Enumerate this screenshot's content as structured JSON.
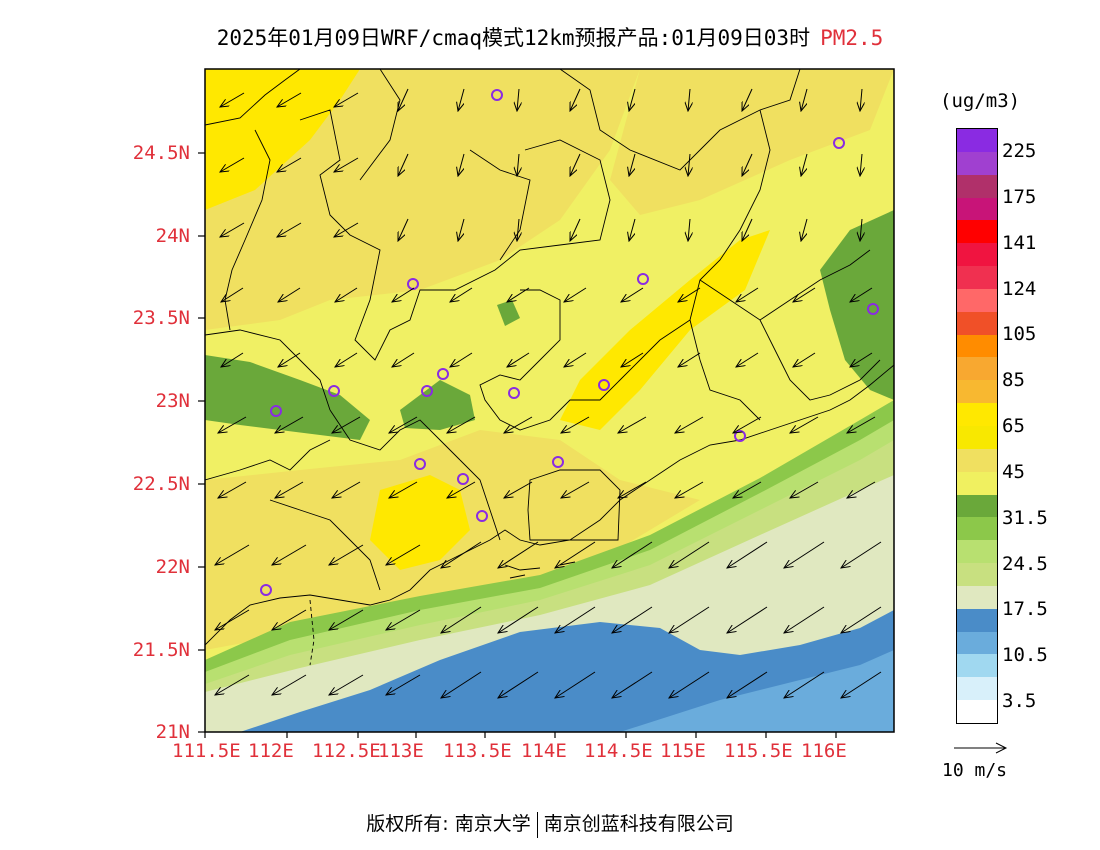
{
  "title": {
    "main": "2025年01月09日WRF/cmaq模式12km预报产品:01月09日03时",
    "pollutant": "PM2.5"
  },
  "axes": {
    "lat_labels": [
      "24.5N",
      "24N",
      "23.5N",
      "23N",
      "22.5N",
      "22N",
      "21.5N",
      "21N"
    ],
    "lon_labels": [
      "111.5E",
      "112E",
      "112.5E",
      "113E",
      "113.5E",
      "114E",
      "114.5E",
      "115E",
      "115.5E",
      "116E"
    ]
  },
  "colorbar": {
    "unit": "(ug/m3)",
    "labels": [
      "225",
      "175",
      "141",
      "124",
      "105",
      "85",
      "65",
      "45",
      "31.5",
      "24.5",
      "17.5",
      "10.5",
      "3.5"
    ],
    "colors_top_to_bottom": [
      "#8a2be2",
      "#a040d0",
      "#b0306a",
      "#c81478",
      "#ff0000",
      "#f01440",
      "#f03050",
      "#ff6868",
      "#f05028",
      "#ff8c00",
      "#f8a830",
      "#f8b830",
      "#ffe800",
      "#f8e800",
      "#f0e060",
      "#f0f060",
      "#6aa83a",
      "#8cc84a",
      "#b8e070",
      "#c8e080",
      "#e0e8c0",
      "#4a8cc8",
      "#6aacdc",
      "#a0d8f0",
      "#d8f0fa",
      "#ffffff"
    ],
    "reference_vector": "10 m/s"
  },
  "map_colors": {
    "c45": "#f0f064",
    "c65a": "#f0e060",
    "c65b": "#ffe800",
    "c31": "#6aa83a",
    "c28": "#8cc84a",
    "c24": "#b8e070",
    "c20": "#c8e080",
    "c17": "#e0e8c0",
    "c14": "#4a8cc8",
    "c10": "#6aacdc"
  },
  "footer": {
    "left": "版权所有: 南京大学",
    "right": "南京创蓝科技有限公司"
  }
}
